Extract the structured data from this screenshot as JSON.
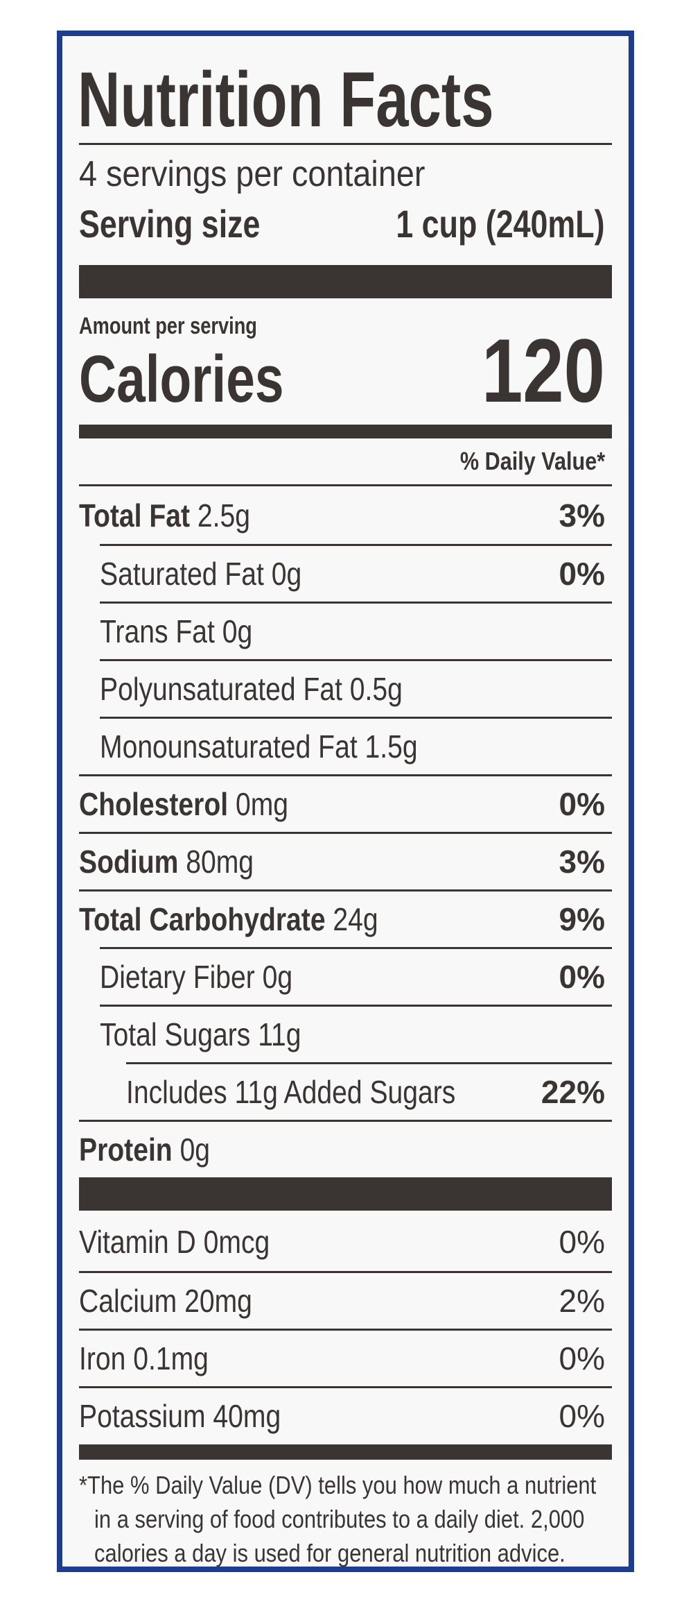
{
  "title": "Nutrition Facts",
  "servings_per_container": "4 servings per container",
  "serving_size": {
    "label": "Serving size",
    "value": "1 cup (240mL)"
  },
  "amount_per_serving": "Amount per serving",
  "calories": {
    "label": "Calories",
    "value": "120"
  },
  "daily_value_header": "% Daily Value*",
  "nutrients": [
    {
      "name": "Total Fat",
      "amount": "2.5g",
      "dv": "3%"
    },
    {
      "name": "Saturated Fat",
      "amount": "0g",
      "dv": "0%"
    },
    {
      "name": "Trans Fat",
      "amount": "0g",
      "dv": ""
    },
    {
      "name": "Polyunsaturated Fat",
      "amount": "0.5g",
      "dv": ""
    },
    {
      "name": "Monounsaturated Fat",
      "amount": "1.5g",
      "dv": ""
    },
    {
      "name": "Cholesterol",
      "amount": "0mg",
      "dv": "0%"
    },
    {
      "name": "Sodium",
      "amount": "80mg",
      "dv": "3%"
    },
    {
      "name": "Total Carbohydrate",
      "amount": "24g",
      "dv": "9%"
    },
    {
      "name": "Dietary Fiber",
      "amount": "0g",
      "dv": "0%"
    },
    {
      "name": "Total Sugars",
      "amount": "11g",
      "dv": ""
    },
    {
      "name": "Includes 11g Added Sugars",
      "amount": "",
      "dv": "22%"
    },
    {
      "name": "Protein",
      "amount": "0g",
      "dv": ""
    }
  ],
  "vitamins": [
    {
      "name": "Vitamin D",
      "amount": "0mcg",
      "dv": "0%"
    },
    {
      "name": "Calcium",
      "amount": "20mg",
      "dv": "2%"
    },
    {
      "name": "Iron",
      "amount": "0.1mg",
      "dv": "0%"
    },
    {
      "name": "Potassium",
      "amount": "40mg",
      "dv": "0%"
    }
  ],
  "footnote": [
    "*The % Daily Value (DV) tells you how much a nutrient",
    "in a serving of food contributes to a daily diet. 2,000",
    "calories a day is used for general nutrition advice."
  ],
  "colors": {
    "border": "#1f3d8f",
    "ink": "#3a3433",
    "panel": "#f8f8f8"
  }
}
